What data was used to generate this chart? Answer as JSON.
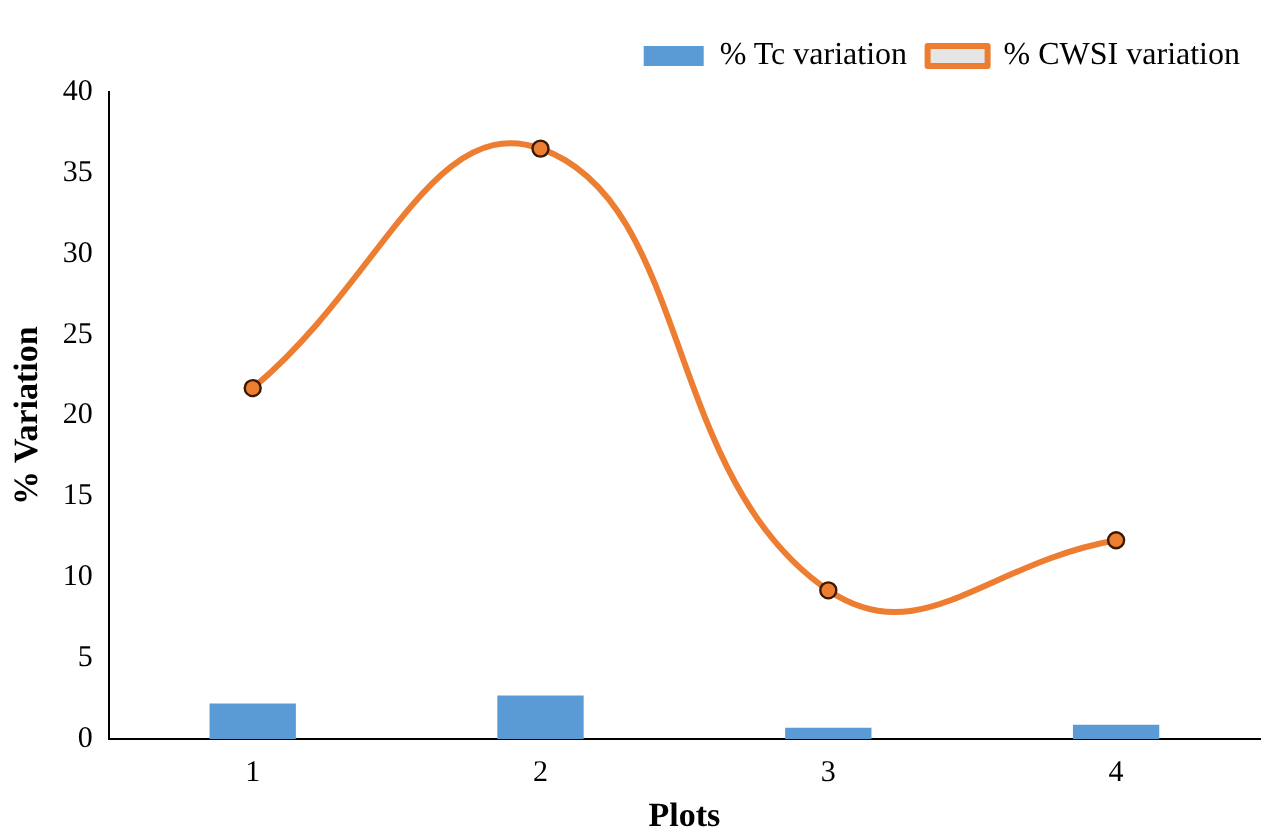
{
  "chart_data": {
    "type": "bar",
    "xlabel": "Plots",
    "ylabel": "% Variation",
    "categories": [
      "1",
      "2",
      "3",
      "4"
    ],
    "series": [
      {
        "name": "% Tc variation",
        "color": "#5b9bd5",
        "values": [
          2.2,
          2.7,
          0.7,
          0.9
        ]
      },
      {
        "name": "% CWSI variation",
        "type": "line",
        "color": "#ed7d31",
        "values": [
          21.7,
          36.5,
          9.2,
          12.3
        ]
      }
    ],
    "ylim": [
      0,
      40
    ],
    "yticks": [
      0,
      5,
      10,
      15,
      20,
      25,
      30,
      35,
      40
    ],
    "grid": false,
    "legend": "top right",
    "marker": "circle"
  }
}
